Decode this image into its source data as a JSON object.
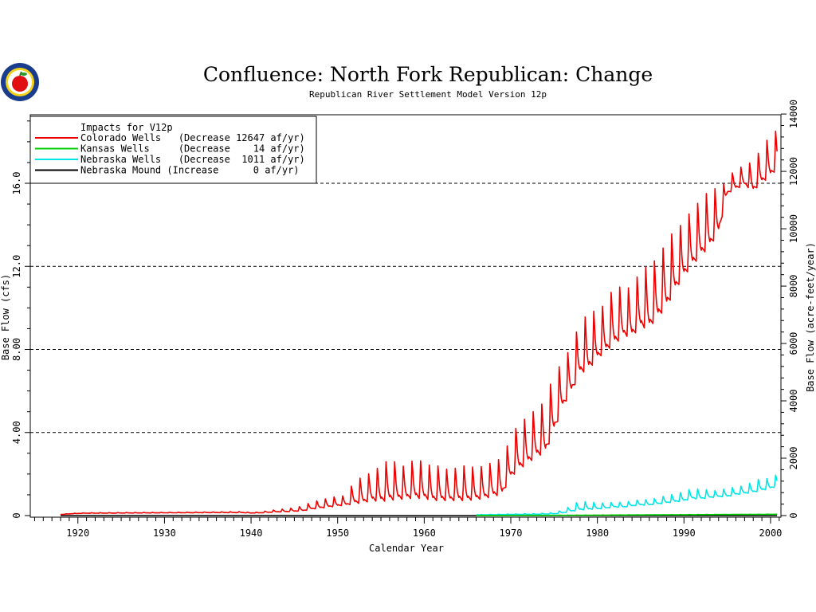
{
  "chart_data": {
    "type": "line",
    "title": "Confluence:  North  Fork  Republican:  Change",
    "subtitle": "Republican River Settlement Model Version 12p",
    "xlabel": "Calendar Year",
    "ylabel_left": "Base Flow (cfs)",
    "ylabel_right": "Base Flow (acre-feet/year)",
    "xlim": [
      1914.5,
      2001.2
    ],
    "ylim_left": [
      0,
      19.3
    ],
    "ylim_right": [
      0,
      13975
    ],
    "x_ticks": [
      "1920",
      "1930",
      "1940",
      "1950",
      "1960",
      "1970",
      "1980",
      "1990",
      "2000"
    ],
    "y_left_ticks": [
      "0",
      "4.00",
      "8.00",
      "12.0",
      "16.0"
    ],
    "y_right_ticks": [
      "0",
      "2000",
      "4000",
      "6000",
      "8000",
      "10000",
      "12000",
      "14000"
    ],
    "grid": "horizontal dashed at 4, 8, 12, 16 cfs",
    "legend": {
      "placement": "top-left",
      "title": "Impacts for V12p",
      "entries": [
        {
          "label": "Colorado Wells   (Decrease 12647 af/yr)",
          "color": "#ee0000"
        },
        {
          "label": "Kansas Wells     (Decrease    14 af/yr)",
          "color": "#00cc00"
        },
        {
          "label": "Nebraska Wells   (Decrease  1011 af/yr)",
          "color": "#00e5e5"
        },
        {
          "label": "Nebraska Mound (Increase      0 af/yr)",
          "color": "#000000"
        }
      ]
    },
    "series": [
      {
        "name": "Colorado Wells",
        "color": "#ee0000",
        "x": [
          1918,
          1919,
          1920,
          1921,
          1925,
          1930,
          1935,
          1939,
          1940,
          1941,
          1942,
          1943,
          1944,
          1945,
          1946,
          1947,
          1948,
          1949,
          1950,
          1951,
          1952,
          1953,
          1954,
          1955,
          1956,
          1957,
          1958,
          1959,
          1960,
          1961,
          1962,
          1963,
          1964,
          1965,
          1966,
          1967,
          1968,
          1969,
          1970,
          1971,
          1972,
          1973,
          1974,
          1975,
          1976,
          1977,
          1978,
          1979,
          1980,
          1981,
          1982,
          1983,
          1984,
          1985,
          1986,
          1987,
          1988,
          1989,
          1990,
          1991,
          1992,
          1993,
          1994,
          1995,
          1996,
          1997,
          1998,
          1999,
          2000,
          2000.8
        ],
        "peak": [
          0.06,
          0.1,
          0.12,
          0.14,
          0.15,
          0.16,
          0.18,
          0.2,
          0.15,
          0.18,
          0.25,
          0.3,
          0.35,
          0.4,
          0.5,
          0.7,
          0.8,
          0.9,
          1.0,
          1.0,
          1.9,
          2.0,
          2.3,
          2.6,
          3.0,
          2.7,
          2.5,
          3.1,
          2.7,
          2.6,
          2.6,
          2.3,
          2.6,
          2.6,
          2.5,
          2.6,
          2.8,
          3.0,
          4.0,
          4.8,
          5.0,
          5.5,
          5.8,
          7.3,
          7.6,
          8.5,
          9.6,
          10.1,
          10.2,
          10.5,
          11.5,
          11.2,
          11.3,
          12.2,
          12.4,
          12.8,
          13.6,
          14.2,
          14.4,
          15.2,
          15.5,
          16.1,
          16.0,
          16.2,
          16.9,
          16.9,
          17.3,
          17.9,
          18.6,
          18.8
        ],
        "trough": [
          0.05,
          0.08,
          0.1,
          0.11,
          0.12,
          0.13,
          0.14,
          0.14,
          0.12,
          0.13,
          0.15,
          0.17,
          0.18,
          0.2,
          0.22,
          0.3,
          0.35,
          0.4,
          0.45,
          0.5,
          0.55,
          0.6,
          0.7,
          0.65,
          0.7,
          0.75,
          0.8,
          0.8,
          0.8,
          0.7,
          0.7,
          0.7,
          0.7,
          0.7,
          0.75,
          0.8,
          0.9,
          1.0,
          1.8,
          2.2,
          2.5,
          2.8,
          3.0,
          4.0,
          5.2,
          5.9,
          6.8,
          7.0,
          7.5,
          7.9,
          8.2,
          8.6,
          8.6,
          9.0,
          9.0,
          9.5,
          10.0,
          10.8,
          11.5,
          12.0,
          12.5,
          12.9,
          13.6,
          15.5,
          15.7,
          15.9,
          15.6,
          16.0,
          16.3,
          16.7
        ]
      },
      {
        "name": "Kansas Wells",
        "color": "#00cc00",
        "x": [
          1966,
          1970,
          1975,
          1980,
          1985,
          1990,
          1995,
          2000,
          2000.8
        ],
        "peak": [
          0.01,
          0.01,
          0.02,
          0.03,
          0.04,
          0.05,
          0.06,
          0.07,
          0.07
        ],
        "trough": [
          0.0,
          0.01,
          0.01,
          0.02,
          0.03,
          0.04,
          0.05,
          0.06,
          0.06
        ]
      },
      {
        "name": "Nebraska Wells",
        "color": "#00e5e5",
        "x": [
          1966,
          1970,
          1973,
          1975,
          1976,
          1977,
          1978,
          1979,
          1980,
          1981,
          1982,
          1983,
          1984,
          1985,
          1986,
          1987,
          1988,
          1989,
          1990,
          1991,
          1992,
          1993,
          1994,
          1995,
          1996,
          1997,
          1998,
          1999,
          2000,
          2000.8
        ],
        "peak": [
          0.05,
          0.08,
          0.1,
          0.15,
          0.3,
          0.5,
          0.8,
          0.65,
          0.7,
          0.6,
          0.7,
          0.65,
          0.75,
          0.8,
          0.8,
          0.9,
          1.0,
          1.1,
          1.2,
          1.4,
          1.3,
          1.3,
          1.2,
          1.4,
          1.4,
          1.5,
          1.7,
          1.9,
          1.8,
          2.1
        ],
        "trough": [
          0.03,
          0.05,
          0.06,
          0.08,
          0.12,
          0.2,
          0.25,
          0.3,
          0.3,
          0.35,
          0.4,
          0.4,
          0.45,
          0.5,
          0.5,
          0.55,
          0.6,
          0.65,
          0.7,
          0.8,
          0.8,
          0.85,
          0.9,
          0.9,
          1.0,
          1.05,
          1.1,
          1.2,
          1.3,
          1.4
        ]
      },
      {
        "name": "Nebraska Mound",
        "color": "#000000",
        "x": [
          1918,
          2000.8
        ],
        "peak": [
          0,
          0
        ],
        "trough": [
          0,
          0
        ]
      }
    ]
  }
}
